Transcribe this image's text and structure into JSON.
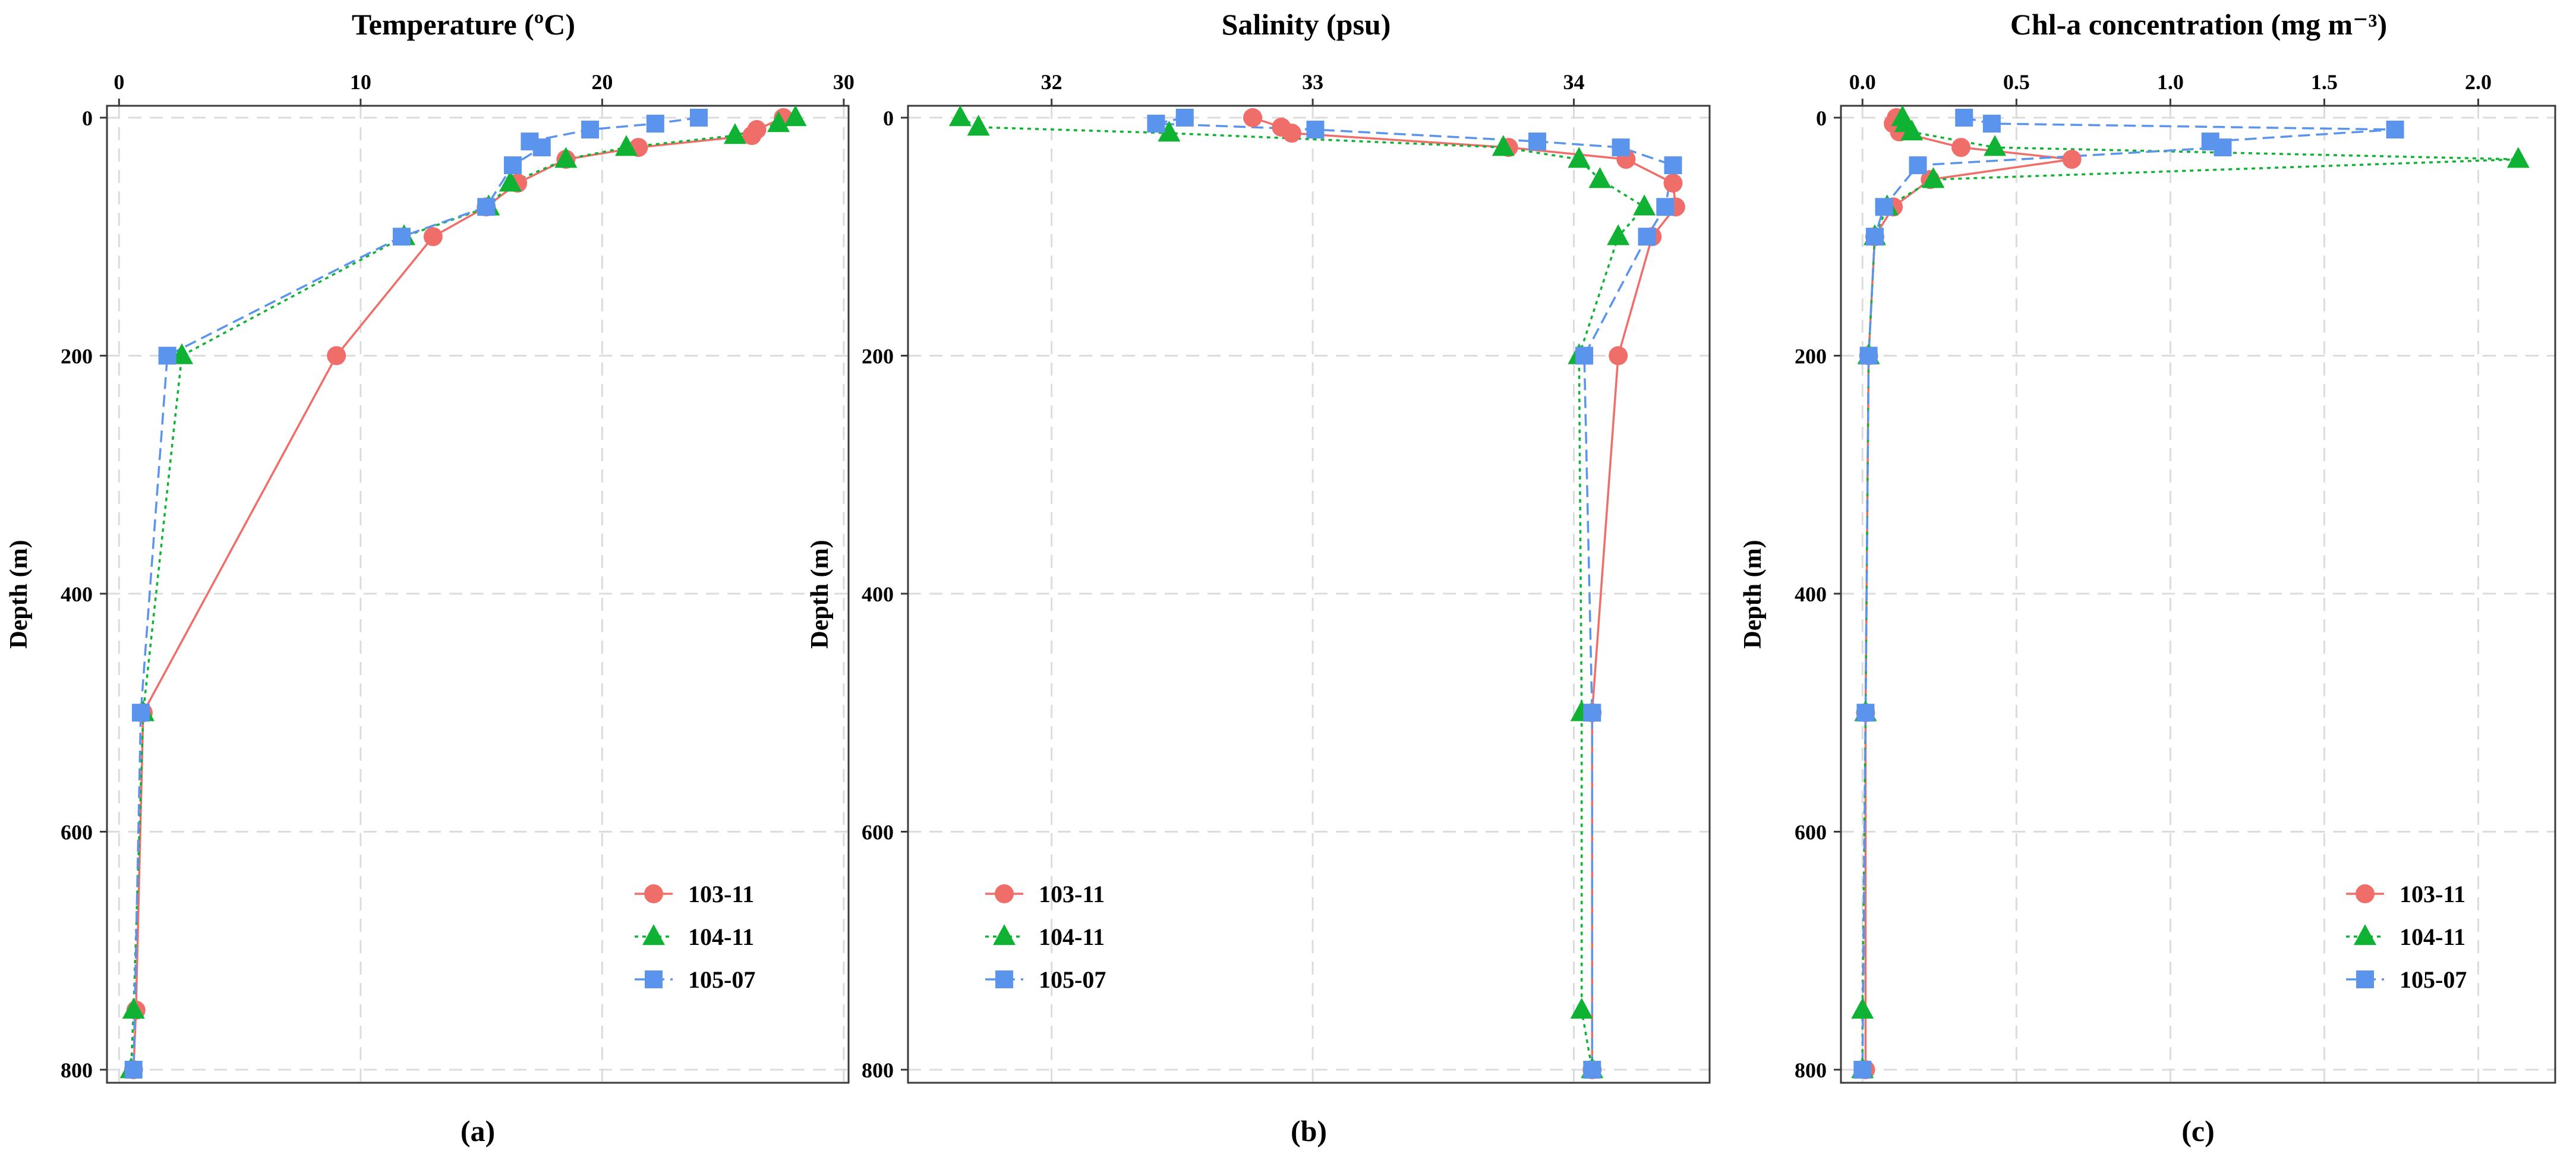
{
  "chart_data": [
    {
      "type": "line",
      "title": "Temperature (ºC)",
      "ylabel": "Depth (m)",
      "panel_label": "(a)",
      "xlim": [
        -0.5,
        30.2
      ],
      "ylim": [
        0,
        810
      ],
      "xticks": [
        0,
        10,
        20,
        30
      ],
      "yticks": [
        0,
        200,
        400,
        600,
        800
      ],
      "legend_position": "bottom-right",
      "grid": true,
      "series": [
        {
          "name": "103-11",
          "color": "#F06E69",
          "marker": "circle",
          "dash": "solid",
          "points": [
            [
              27.5,
              0
            ],
            [
              26.4,
              10
            ],
            [
              26.2,
              15
            ],
            [
              21.5,
              25
            ],
            [
              18.5,
              35
            ],
            [
              16.5,
              55
            ],
            [
              15.2,
              75
            ],
            [
              13,
              100
            ],
            [
              9,
              200
            ],
            [
              1,
              500
            ],
            [
              0.7,
              750
            ],
            [
              0.6,
              800
            ]
          ]
        },
        {
          "name": "104-11",
          "color": "#10B234",
          "marker": "triangle",
          "dash": "dotted",
          "points": [
            [
              28,
              0
            ],
            [
              27.3,
              5
            ],
            [
              25.5,
              15
            ],
            [
              21,
              25
            ],
            [
              18.5,
              35
            ],
            [
              16.2,
              55
            ],
            [
              15.3,
              75
            ],
            [
              11.8,
              100
            ],
            [
              2.6,
              200
            ],
            [
              1,
              500
            ],
            [
              0.6,
              750
            ],
            [
              0.5,
              800
            ]
          ]
        },
        {
          "name": "105-07",
          "color": "#5A94EC",
          "marker": "square",
          "dash": "dashed",
          "points": [
            [
              24,
              0
            ],
            [
              22.2,
              5
            ],
            [
              19.5,
              10
            ],
            [
              17,
              20
            ],
            [
              17.5,
              25
            ],
            [
              16.3,
              40
            ],
            [
              15.2,
              75
            ],
            [
              11.7,
              100
            ],
            [
              2,
              200
            ],
            [
              0.9,
              500
            ],
            [
              0.6,
              800
            ]
          ]
        }
      ]
    },
    {
      "type": "line",
      "title": "Salinity (psu)",
      "ylabel": "Depth (m)",
      "panel_label": "(b)",
      "xlim": [
        31.45,
        34.52
      ],
      "ylim": [
        0,
        810
      ],
      "xticks": [
        32,
        33,
        34
      ],
      "yticks": [
        0,
        200,
        400,
        600,
        800
      ],
      "legend_position": "bottom-left",
      "grid": true,
      "series": [
        {
          "name": "103-11",
          "color": "#F06E69",
          "marker": "circle",
          "dash": "solid",
          "points": [
            [
              32.77,
              0
            ],
            [
              32.88,
              8
            ],
            [
              32.92,
              13
            ],
            [
              33.75,
              25
            ],
            [
              34.2,
              35
            ],
            [
              34.38,
              55
            ],
            [
              34.39,
              75
            ],
            [
              34.3,
              100
            ],
            [
              34.17,
              200
            ],
            [
              34.07,
              500
            ],
            [
              34.07,
              800
            ]
          ]
        },
        {
          "name": "104-11",
          "color": "#10B234",
          "marker": "triangle",
          "dash": "dotted",
          "points": [
            [
              31.65,
              0
            ],
            [
              31.72,
              8
            ],
            [
              32.45,
              13
            ],
            [
              33.73,
              25
            ],
            [
              34.02,
              35
            ],
            [
              34.1,
              52
            ],
            [
              34.27,
              75
            ],
            [
              34.17,
              100
            ],
            [
              34.02,
              200
            ],
            [
              34.03,
              500
            ],
            [
              34.03,
              750
            ],
            [
              34.07,
              800
            ]
          ]
        },
        {
          "name": "105-07",
          "color": "#5A94EC",
          "marker": "square",
          "dash": "dashed",
          "points": [
            [
              32.51,
              0
            ],
            [
              32.4,
              5
            ],
            [
              33.01,
              10
            ],
            [
              33.86,
              20
            ],
            [
              34.18,
              25
            ],
            [
              34.38,
              40
            ],
            [
              34.35,
              75
            ],
            [
              34.28,
              100
            ],
            [
              34.04,
              200
            ],
            [
              34.07,
              500
            ],
            [
              34.07,
              800
            ]
          ]
        }
      ]
    },
    {
      "type": "line",
      "title": "Chl-a concentration (mg m⁻³)",
      "ylabel": "Depth (m)",
      "panel_label": "(c)",
      "xlim": [
        -0.07,
        2.25
      ],
      "ylim": [
        0,
        810
      ],
      "xticks": [
        0.0,
        0.5,
        1.0,
        1.5,
        2.0
      ],
      "xtick_labels": [
        "0.0",
        "0.5",
        "1.0",
        "1.5",
        "2.0"
      ],
      "yticks": [
        0,
        200,
        400,
        600,
        800
      ],
      "legend_position": "bottom-right",
      "grid": true,
      "series": [
        {
          "name": "103-11",
          "color": "#F06E69",
          "marker": "circle",
          "dash": "solid",
          "points": [
            [
              0.11,
              0
            ],
            [
              0.1,
              5
            ],
            [
              0.12,
              12
            ],
            [
              0.32,
              25
            ],
            [
              0.68,
              35
            ],
            [
              0.22,
              52
            ],
            [
              0.1,
              75
            ],
            [
              0.04,
              100
            ],
            [
              0.02,
              200
            ],
            [
              0.01,
              500
            ],
            [
              0.01,
              800
            ]
          ]
        },
        {
          "name": "104-11",
          "color": "#10B234",
          "marker": "triangle",
          "dash": "dotted",
          "points": [
            [
              0.13,
              0
            ],
            [
              0.14,
              5
            ],
            [
              0.16,
              12
            ],
            [
              0.43,
              25
            ],
            [
              2.13,
              35
            ],
            [
              0.23,
              52
            ],
            [
              0.08,
              75
            ],
            [
              0.04,
              100
            ],
            [
              0.02,
              200
            ],
            [
              0.01,
              500
            ],
            [
              0.0,
              750
            ],
            [
              0.0,
              800
            ]
          ]
        },
        {
          "name": "105-07",
          "color": "#5A94EC",
          "marker": "square",
          "dash": "dashed",
          "points": [
            [
              0.33,
              0
            ],
            [
              0.42,
              5
            ],
            [
              1.73,
              10
            ],
            [
              1.13,
              20
            ],
            [
              1.17,
              25
            ],
            [
              0.18,
              40
            ],
            [
              0.07,
              75
            ],
            [
              0.04,
              100
            ],
            [
              0.02,
              200
            ],
            [
              0.01,
              500
            ],
            [
              0.0,
              800
            ]
          ]
        }
      ]
    }
  ]
}
